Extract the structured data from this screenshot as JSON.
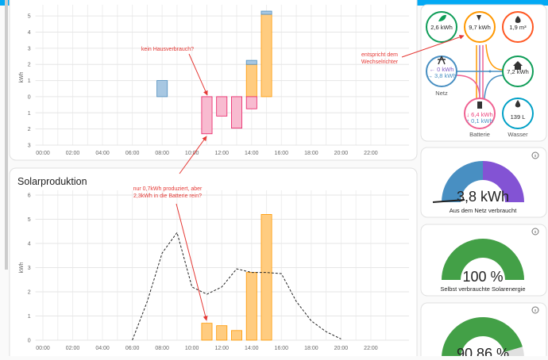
{
  "energy_chart": {
    "type": "bar",
    "y_label": "kWh",
    "categories": [
      "00:00",
      null,
      "02:00",
      null,
      "04:00",
      null,
      "06:00",
      null,
      "08:00",
      null,
      "10:00",
      null,
      "12:00",
      null,
      "14:00",
      null,
      "16:00",
      null,
      "18:00",
      null,
      "20:00",
      null,
      "22:00",
      null
    ],
    "series": [
      {
        "color": "#ffcc80",
        "values": [
          null,
          null,
          null,
          null,
          null,
          null,
          null,
          null,
          null,
          null,
          null,
          null,
          null,
          null,
          2.0,
          5.1,
          null,
          null,
          null,
          null,
          null,
          null,
          null,
          null
        ]
      },
      {
        "color": "#a7c7e2",
        "values": [
          null,
          null,
          null,
          null,
          null,
          null,
          null,
          null,
          1.0,
          null,
          null,
          null,
          null,
          null,
          0.25,
          0.2,
          null,
          null,
          null,
          null,
          null,
          null,
          null,
          null
        ]
      },
      {
        "color": "#f8bbd0",
        "values": [
          null,
          null,
          null,
          null,
          null,
          null,
          null,
          null,
          null,
          null,
          null,
          -2.3,
          -1.2,
          -1.95,
          -0.75,
          null,
          null,
          null,
          null,
          null,
          null,
          null,
          null,
          null
        ]
      }
    ],
    "ylim": [
      -3,
      5.4
    ],
    "yticks": [
      {
        "value": -3,
        "label": "3"
      },
      {
        "value": -2,
        "label": "2"
      },
      {
        "value": -1,
        "label": "1"
      },
      0,
      1,
      2,
      3,
      4,
      5
    ],
    "grid": true
  },
  "solar_chart": {
    "type": "bar",
    "title": "Solarproduktion",
    "y_label": "kWh",
    "categories": [
      "00:00",
      null,
      "02:00",
      null,
      "04:00",
      null,
      "06:00",
      null,
      "08:00",
      null,
      "10:00",
      null,
      "12:00",
      null,
      "14:00",
      null,
      "16:00",
      null,
      "18:00",
      null,
      "20:00",
      null,
      "22:00",
      null
    ],
    "series": [
      {
        "type": "bar",
        "color": "#ffcc80",
        "values": [
          null,
          null,
          null,
          null,
          null,
          null,
          null,
          null,
          null,
          null,
          null,
          0.7,
          0.6,
          0.4,
          2.8,
          5.2,
          null,
          null,
          null,
          null,
          null,
          null,
          null,
          null
        ]
      },
      {
        "type": "line",
        "color": "#222222",
        "values": [
          null,
          null,
          null,
          null,
          null,
          null,
          0,
          1.6,
          3.6,
          4.45,
          2.2,
          1.9,
          2.2,
          2.95,
          2.8,
          2.8,
          2.75,
          1.6,
          0.8,
          0.35,
          0.05,
          null,
          null,
          null
        ]
      }
    ],
    "ylim": [
      0,
      6
    ],
    "yticks": [
      0,
      1,
      2,
      3,
      4,
      5,
      6
    ],
    "grid": true
  },
  "annotations": [
    {
      "lines": [
        "kein Hausverbrauch?"
      ]
    },
    {
      "lines": [
        "nur 0,7kWh produziert, aber",
        "2,3kWh in die Batterie rein?"
      ]
    },
    {
      "lines": [
        "entspricht dem",
        "Wechselrichter"
      ]
    }
  ],
  "energy_distribution": {
    "low_carbon": "2,6 kWh",
    "solar": "9,7 kWh",
    "gas": "1,9 m³",
    "grid": {
      "label": "Netz",
      "in": "← 0 kWh",
      "out": "→ 3,8 kWh"
    },
    "home": "7,2 kWh",
    "battery": {
      "label": "Batterie",
      "in": "↓ 6,4 kWh",
      "out": "↑ 0,1 kWh"
    },
    "water": {
      "label": "Wasser",
      "value": "139 L"
    }
  },
  "gauges": [
    {
      "value_label": "3,8 kWh",
      "label": "Aus dem Netz verbraucht"
    },
    {
      "value": 100,
      "value_label": "100 %",
      "label": "Selbst verbrauchte Solarenergie"
    },
    {
      "value": 90.86,
      "value_label": "90,86 %"
    }
  ]
}
